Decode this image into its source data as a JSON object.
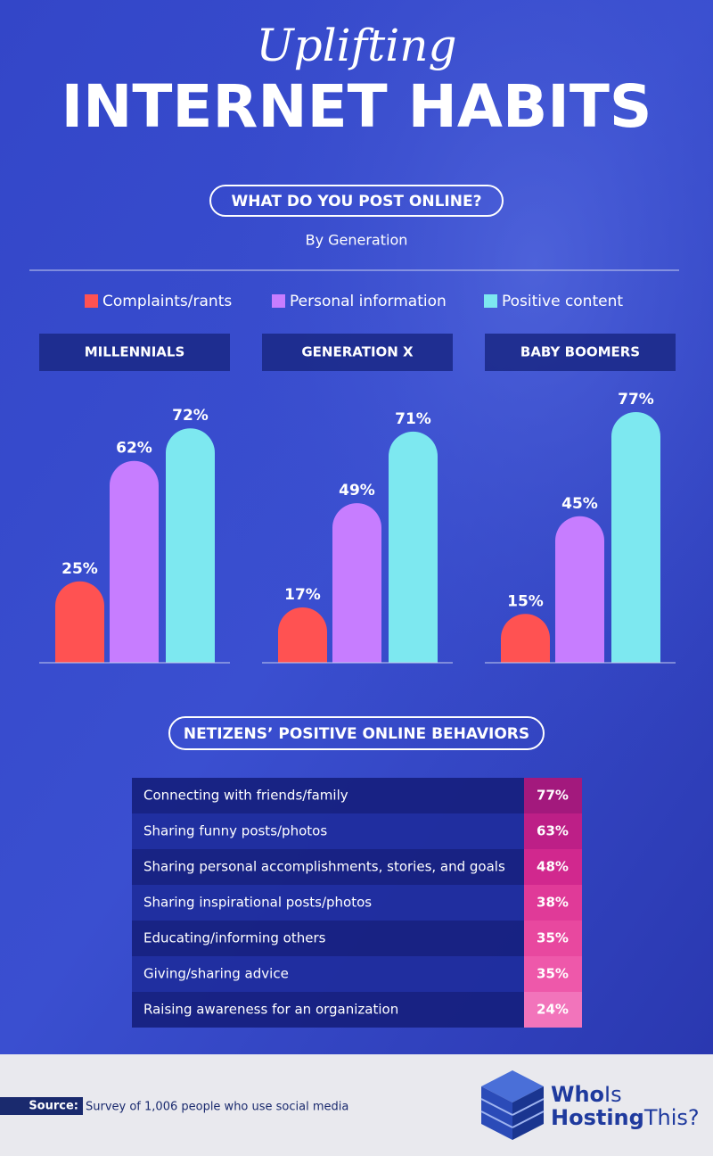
{
  "header": {
    "script_title": "Uplifting",
    "title": "INTERNET HABITS"
  },
  "chart_data": {
    "type": "bar",
    "title": "WHAT DO YOU POST ONLINE?",
    "subtitle": "By Generation",
    "categories": [
      "MILLENNIALS",
      "GENERATION X",
      "BABY BOOMERS"
    ],
    "series": [
      {
        "name": "Complaints/rants",
        "color": "#ff5252",
        "values": [
          25,
          17,
          15
        ],
        "value_labels": [
          "25%",
          "17%",
          "15%"
        ]
      },
      {
        "name": "Personal information",
        "color": "#c77dff",
        "values": [
          62,
          49,
          45
        ],
        "value_labels": [
          "62%",
          "49%",
          "45%"
        ]
      },
      {
        "name": "Positive content",
        "color": "#7de8f0",
        "values": [
          72,
          71,
          77
        ],
        "value_labels": [
          "72%",
          "71%",
          "77%"
        ]
      }
    ]
  },
  "table": {
    "title": "NETIZENS’ POSITIVE ONLINE BEHAVIORS",
    "rows": [
      [
        "Connecting with friends/family",
        "77%"
      ],
      [
        "Sharing funny posts/photos",
        "63%"
      ],
      [
        "Sharing personal accomplishments, stories, and goals",
        "48%"
      ],
      [
        "Sharing inspirational posts/photos",
        "38%"
      ],
      [
        "Educating/informing others",
        "35%"
      ],
      [
        "Giving/sharing advice",
        "35%"
      ],
      [
        "Raising awareness for an organization",
        "24%"
      ]
    ]
  },
  "footer": {
    "source_label": "Source:",
    "source_text": "Survey of 1,006 people who use social media",
    "logo_line1": [
      "Who",
      "Is"
    ],
    "logo_line2": [
      "Hosting",
      "This?"
    ]
  }
}
